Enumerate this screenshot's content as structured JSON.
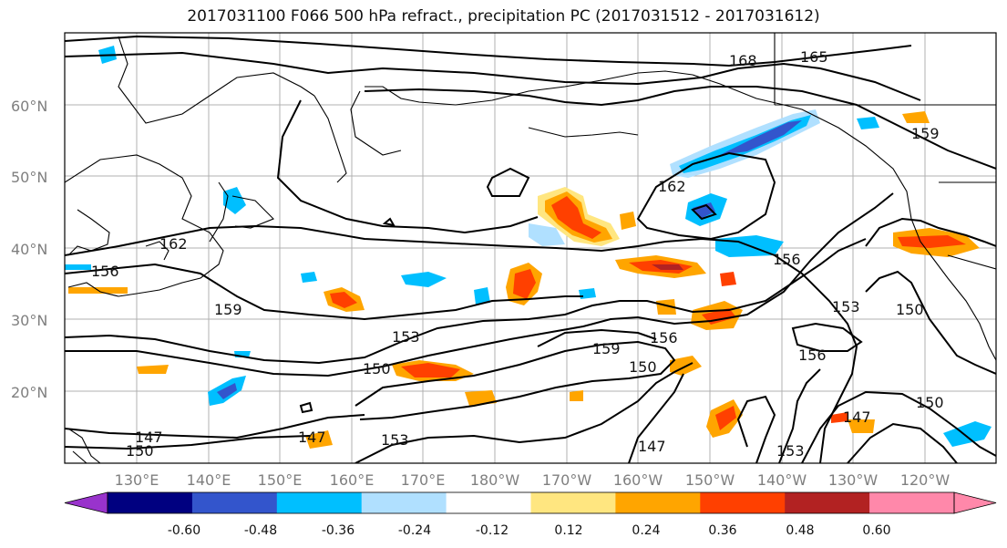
{
  "title": "2017031100 F066 500 hPa refract., precipitation PC (2017031512 - 2017031612)",
  "latitudes": [
    "20°N",
    "30°N",
    "40°N",
    "50°N",
    "60°N"
  ],
  "longitudes": [
    "130°E",
    "140°E",
    "150°E",
    "160°E",
    "170°E",
    "180°W",
    "170°W",
    "160°W",
    "150°W",
    "140°W",
    "130°W",
    "120°W"
  ],
  "contour_levels": [
    "168",
    "165",
    "162",
    "162",
    "159",
    "159",
    "159",
    "156",
    "156",
    "156",
    "153",
    "153",
    "150",
    "150",
    "150",
    "150",
    "147",
    "147",
    "147",
    "147",
    "153",
    "156",
    "153",
    "150"
  ],
  "colorbar": {
    "ticks": [
      "-0.60",
      "-0.48",
      "-0.36",
      "-0.24",
      "-0.12",
      "0.12",
      "0.24",
      "0.36",
      "0.48",
      "0.60"
    ],
    "colors": [
      "#9933cc",
      "#000080",
      "#3355cc",
      "#00bfff",
      "#b0e0ff",
      "#ffffff",
      "#ffe680",
      "#ffa500",
      "#ff4000",
      "#b22222",
      "#ff88aa",
      "#ff88aa"
    ]
  }
}
